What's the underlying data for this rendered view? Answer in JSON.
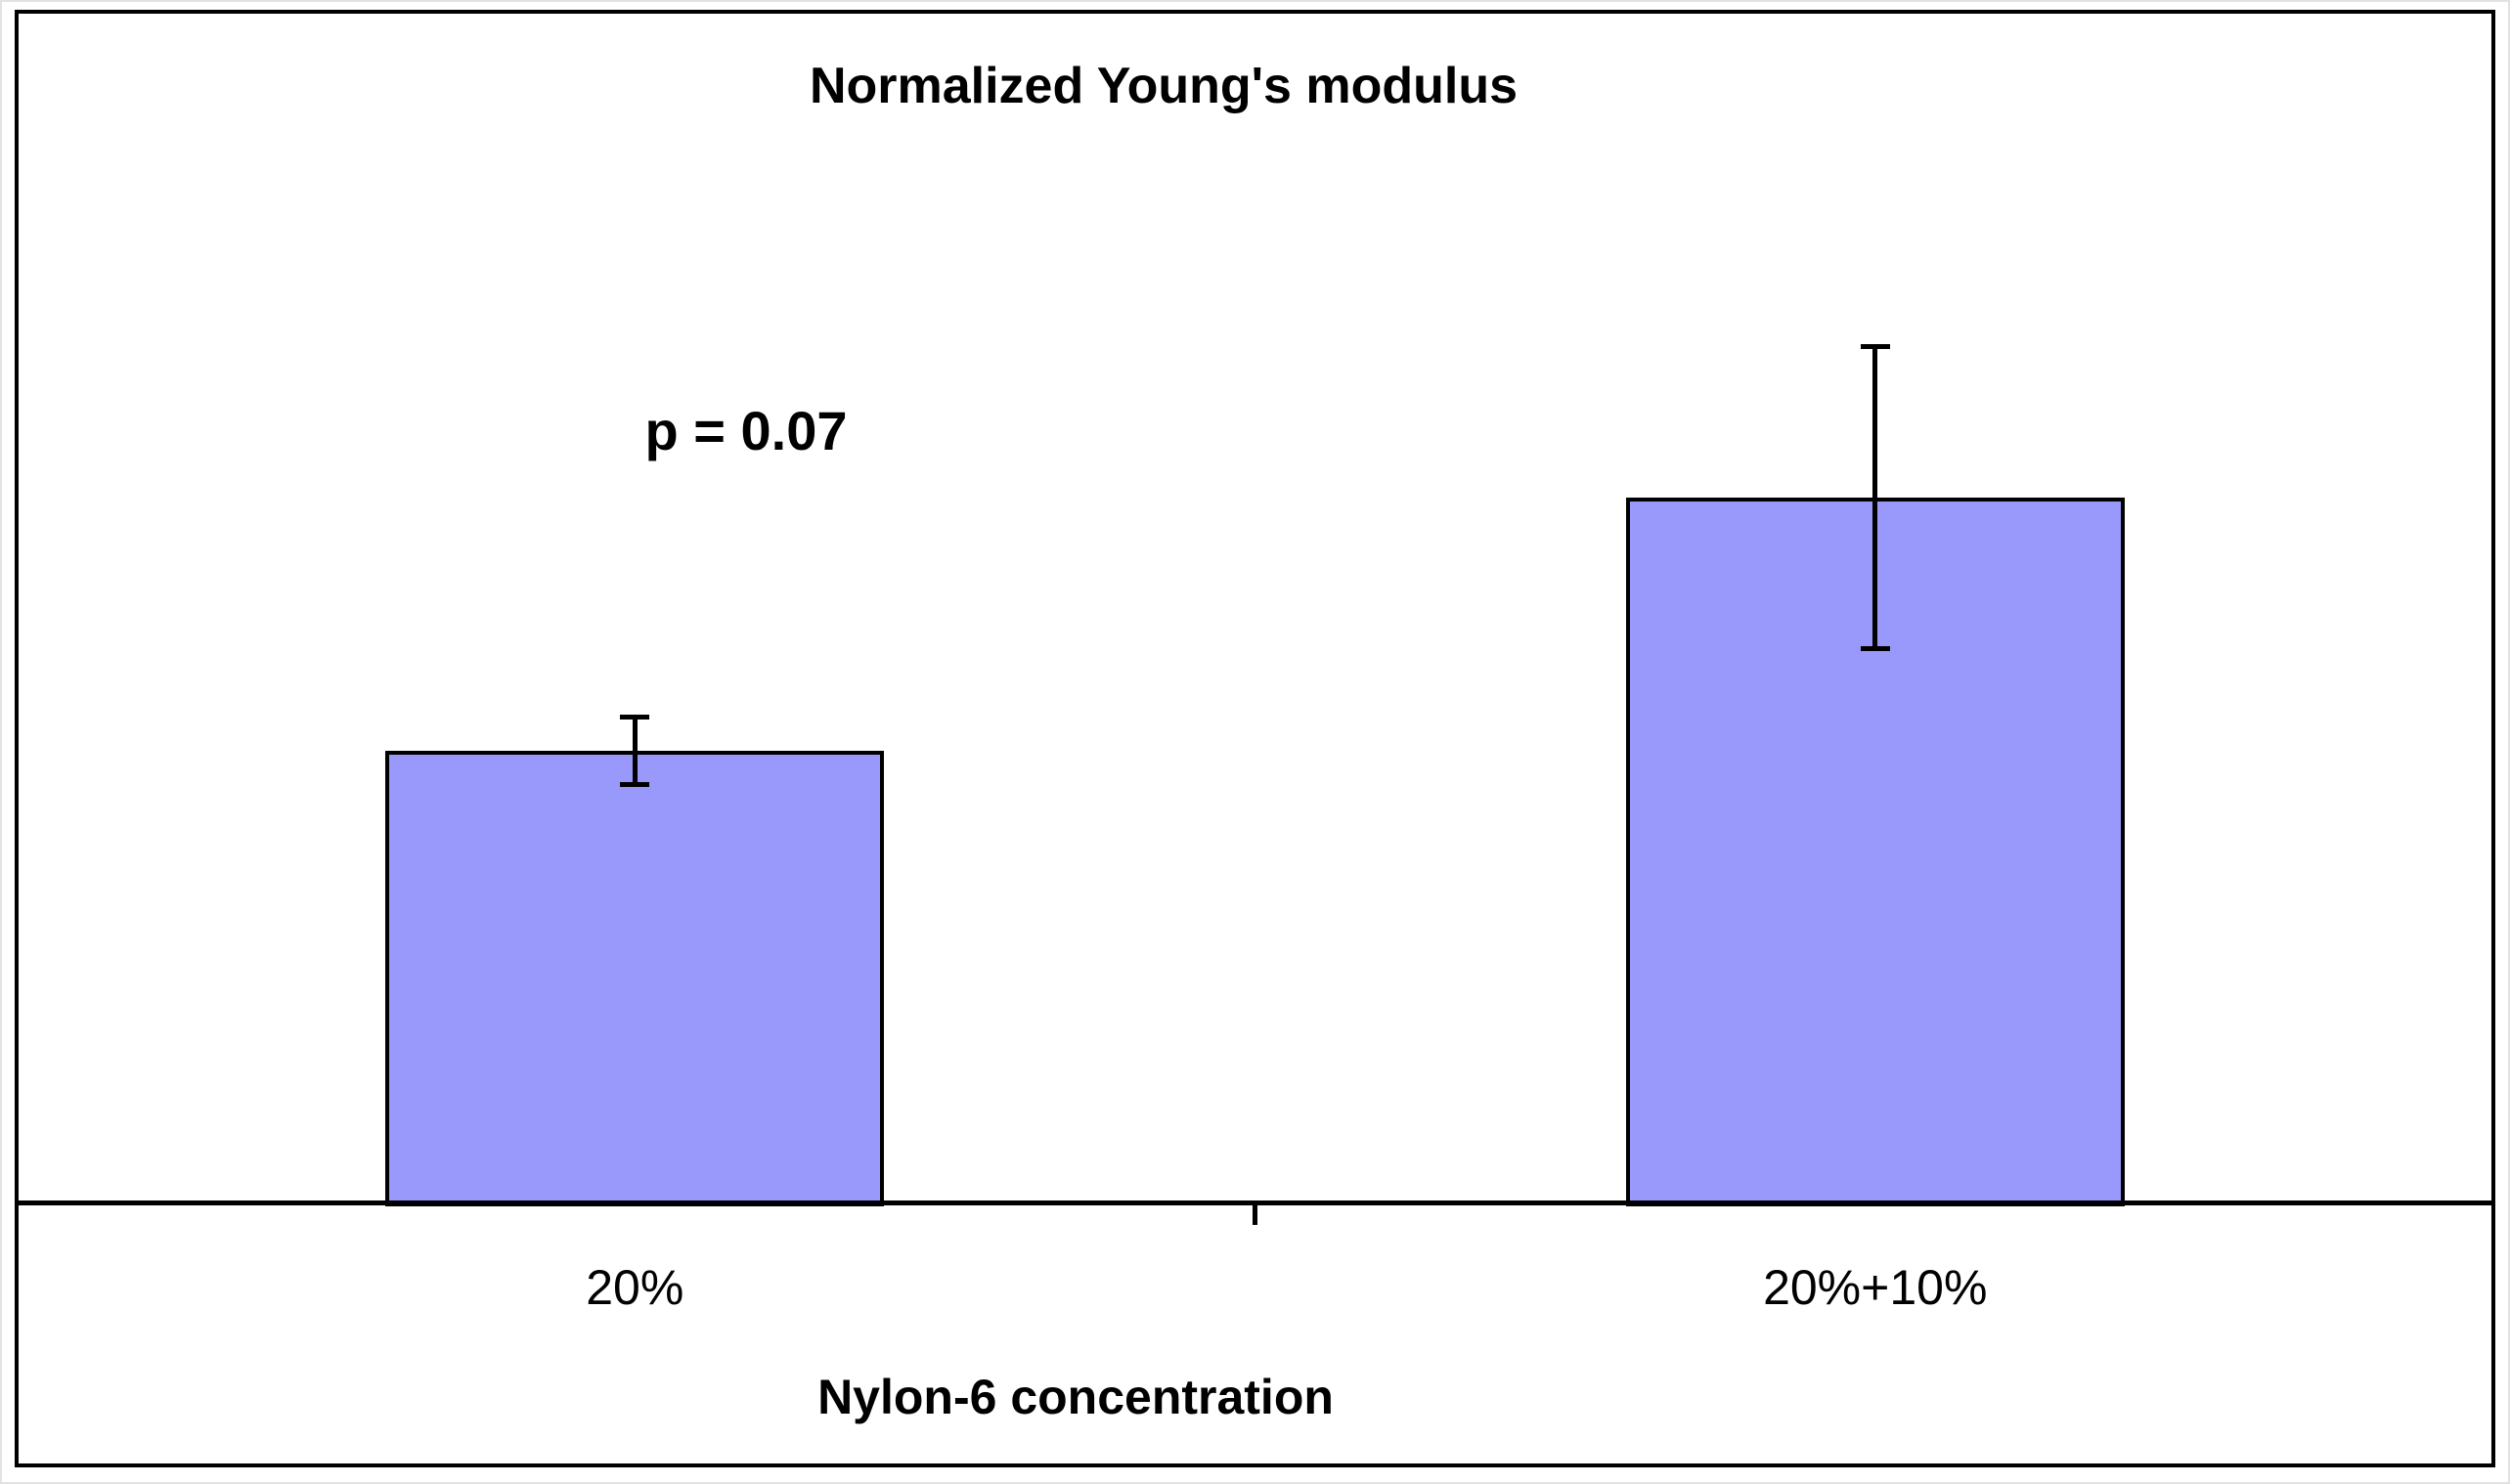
{
  "chart_data": {
    "type": "bar",
    "title": "Normalized Young's modulus",
    "xlabel": "Nylon-6 concentration",
    "ylabel": "",
    "categories": [
      "20%",
      "20%+10%"
    ],
    "values": [
      1.0,
      1.56
    ],
    "error_bars": [
      0.08,
      0.34
    ],
    "annotation": {
      "text": "p = 0.07"
    },
    "bar_fill_color": "#9999FB",
    "bar_border_color": "#000000",
    "axis_color": "#000000",
    "text_color": "#000000",
    "y_axis_visible": false,
    "gridlines": false,
    "legend": "none",
    "ylim": [
      0,
      2.64
    ]
  }
}
